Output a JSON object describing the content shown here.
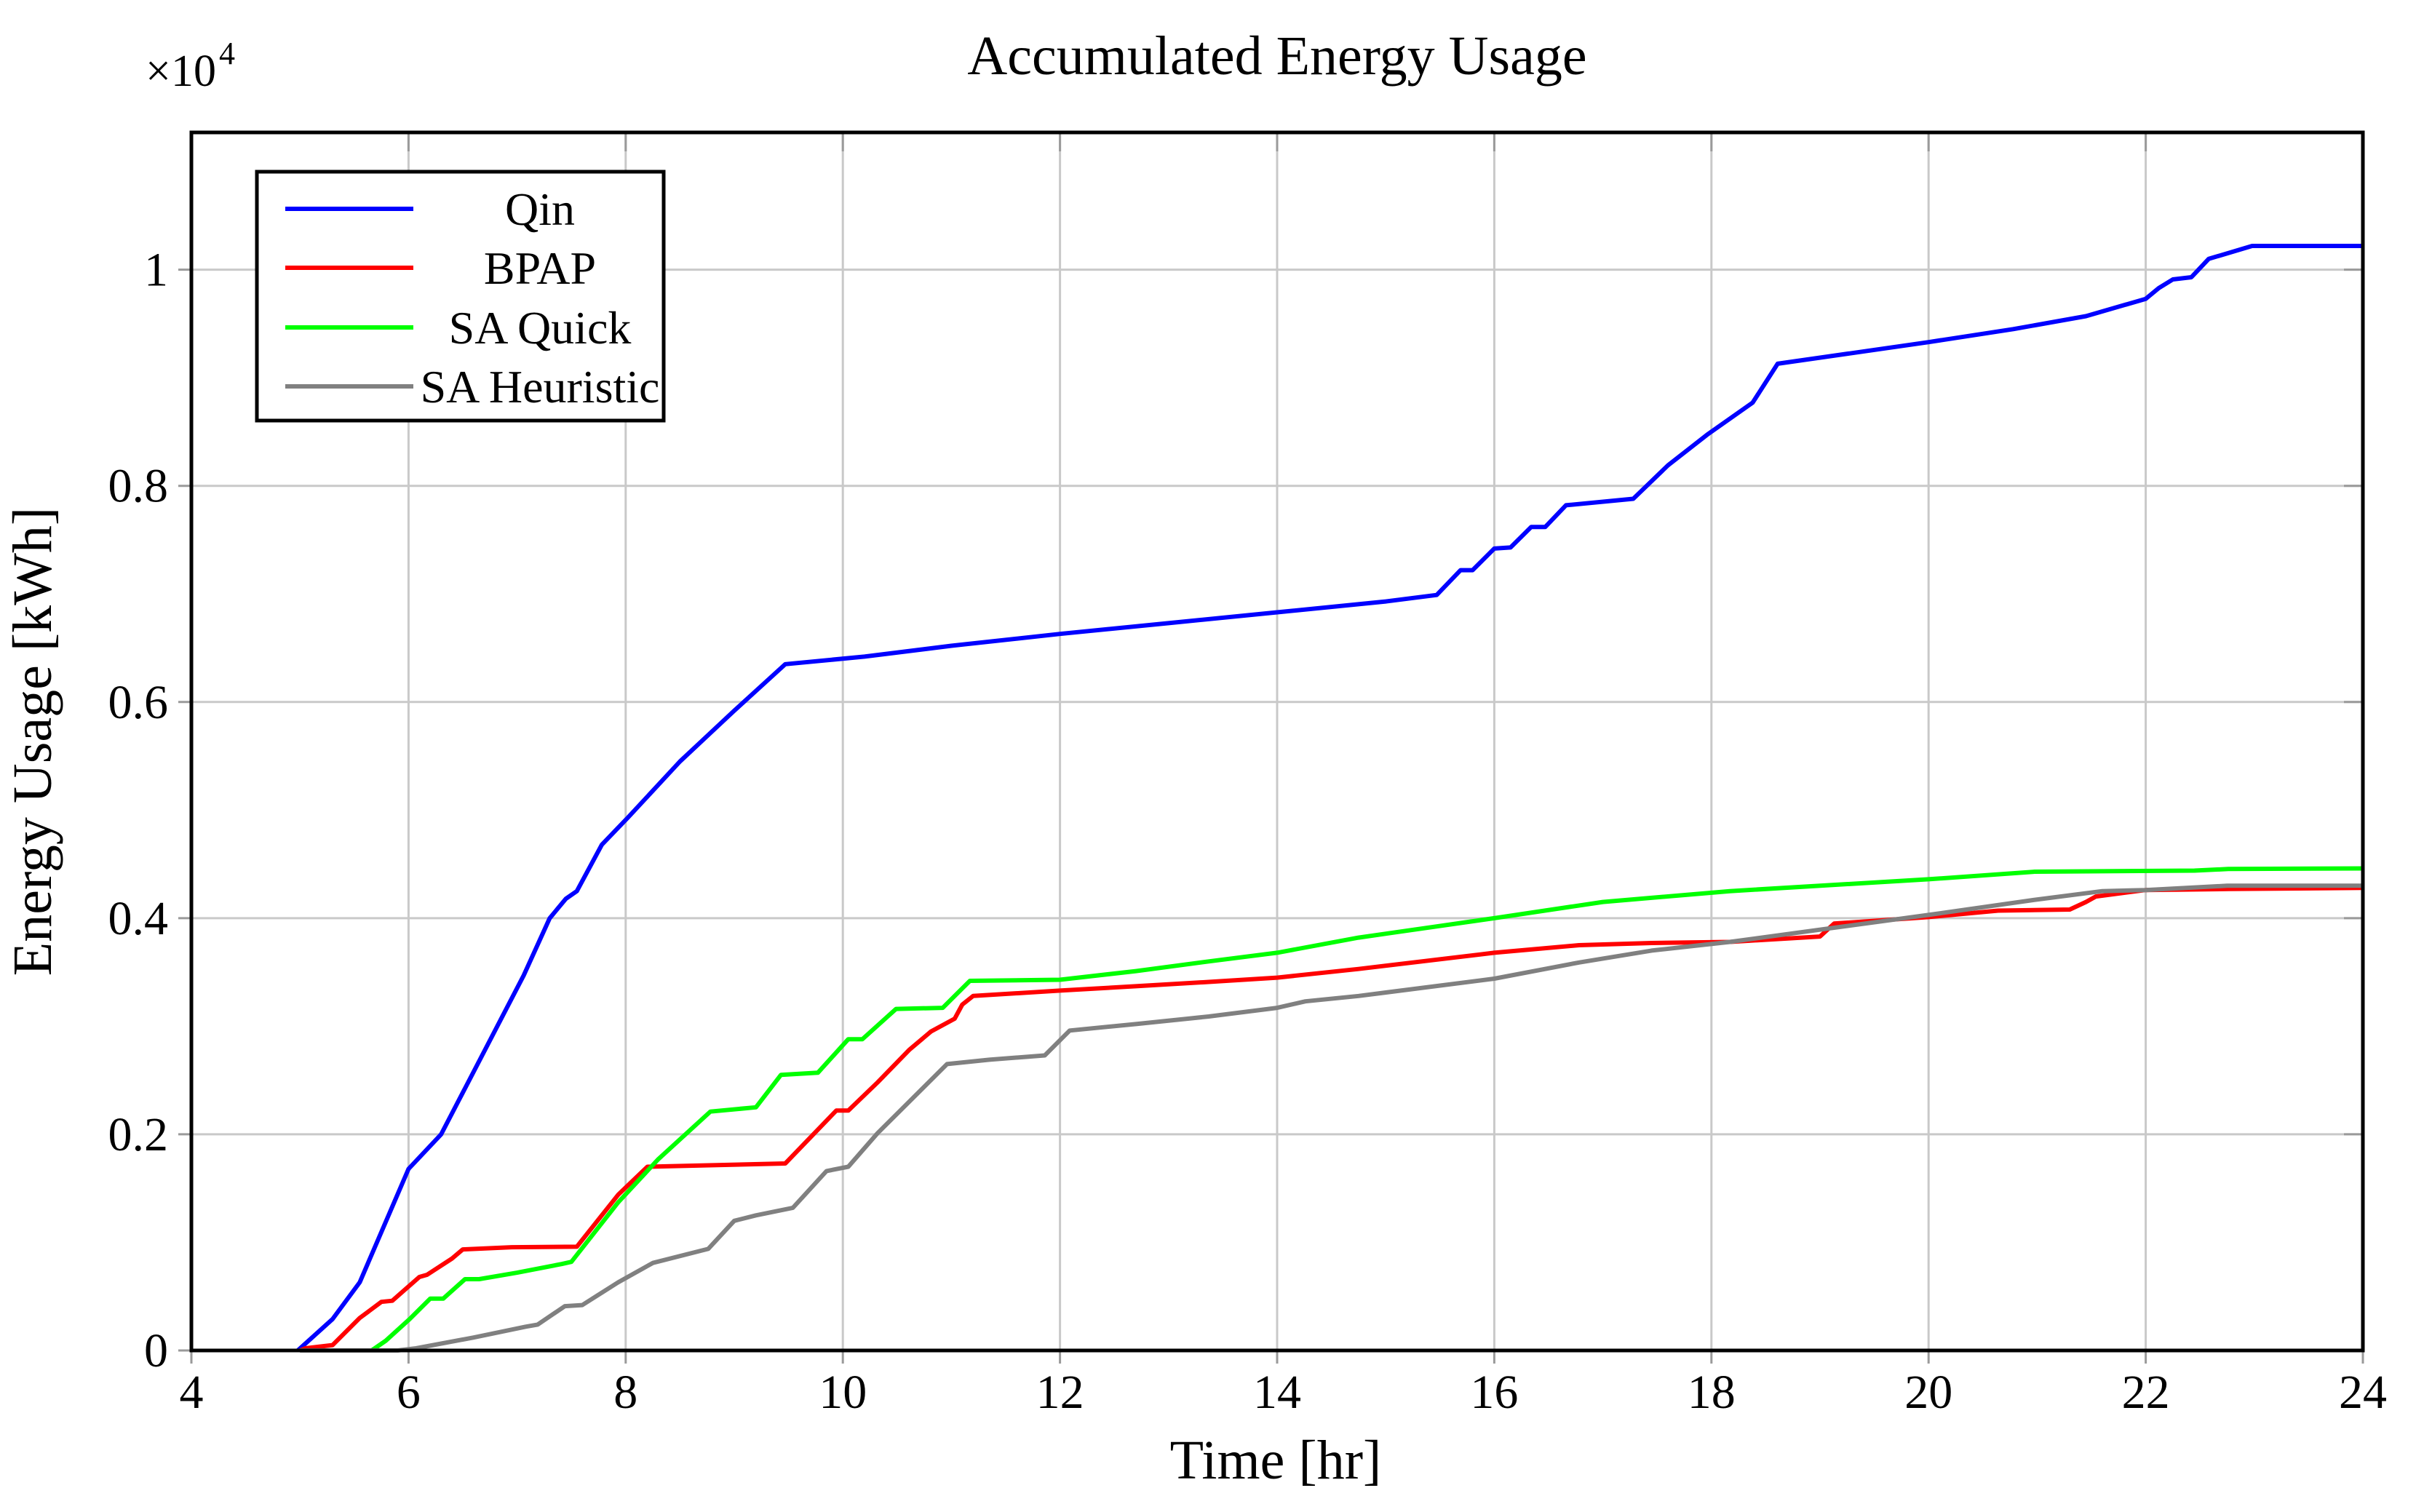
{
  "chart_data": {
    "type": "line",
    "title": "Accumulated Energy Usage",
    "xlabel": "Time [hr]",
    "ylabel": "Energy Usage [kWh]",
    "y_multiplier_base": "×10",
    "y_multiplier_exp": "4",
    "xlim": [
      4,
      24
    ],
    "ylim": [
      0,
      11270
    ],
    "x_ticks": [
      4,
      6,
      8,
      10,
      12,
      14,
      16,
      18,
      20,
      22,
      24
    ],
    "y_ticks": [
      {
        "value": 0,
        "label": "0"
      },
      {
        "value": 2000,
        "label": "0.2"
      },
      {
        "value": 4000,
        "label": "0.4"
      },
      {
        "value": 6000,
        "label": "0.6"
      },
      {
        "value": 8000,
        "label": "0.8"
      },
      {
        "value": 10000,
        "label": "1"
      }
    ],
    "grid": true,
    "legend_position": "top-left",
    "colors": {
      "grid": "#c9c9c9",
      "axis": "#000000",
      "tick": "#9a9a9a",
      "background": "#ffffff"
    },
    "series": [
      {
        "name": "Qin",
        "color": "#0000ff",
        "points": [
          [
            4.98,
            0
          ],
          [
            5.3,
            290
          ],
          [
            5.55,
            630
          ],
          [
            6.0,
            1680
          ],
          [
            6.3,
            2000
          ],
          [
            7.06,
            3470
          ],
          [
            7.3,
            4000
          ],
          [
            7.45,
            4180
          ],
          [
            7.55,
            4250
          ],
          [
            7.78,
            4680
          ],
          [
            8.02,
            4930
          ],
          [
            8.5,
            5450
          ],
          [
            9.0,
            5920
          ],
          [
            9.47,
            6350
          ],
          [
            10.2,
            6420
          ],
          [
            11.0,
            6520
          ],
          [
            12.0,
            6630
          ],
          [
            13.0,
            6730
          ],
          [
            14.0,
            6830
          ],
          [
            15.0,
            6930
          ],
          [
            15.47,
            6990
          ],
          [
            15.69,
            7220
          ],
          [
            15.8,
            7220
          ],
          [
            16.0,
            7420
          ],
          [
            16.15,
            7430
          ],
          [
            16.34,
            7620
          ],
          [
            16.47,
            7620
          ],
          [
            16.66,
            7820
          ],
          [
            17.28,
            7880
          ],
          [
            17.6,
            8190
          ],
          [
            17.97,
            8480
          ],
          [
            18.38,
            8770
          ],
          [
            18.61,
            9130
          ],
          [
            20.0,
            9330
          ],
          [
            20.78,
            9450
          ],
          [
            21.45,
            9570
          ],
          [
            22.0,
            9730
          ],
          [
            22.12,
            9830
          ],
          [
            22.25,
            9910
          ],
          [
            22.42,
            9930
          ],
          [
            22.58,
            10100
          ],
          [
            22.98,
            10220
          ],
          [
            24.0,
            10220
          ]
        ]
      },
      {
        "name": "BPAP",
        "color": "#ff0000",
        "points": [
          [
            5.0,
            0
          ],
          [
            5.05,
            20
          ],
          [
            5.3,
            50
          ],
          [
            5.55,
            300
          ],
          [
            5.75,
            450
          ],
          [
            5.85,
            460
          ],
          [
            6.1,
            680
          ],
          [
            6.17,
            700
          ],
          [
            6.4,
            850
          ],
          [
            6.5,
            935
          ],
          [
            6.95,
            955
          ],
          [
            7.55,
            960
          ],
          [
            7.93,
            1440
          ],
          [
            8.2,
            1700
          ],
          [
            9.47,
            1730
          ],
          [
            9.94,
            2220
          ],
          [
            10.05,
            2220
          ],
          [
            10.32,
            2480
          ],
          [
            10.61,
            2780
          ],
          [
            10.81,
            2950
          ],
          [
            11.03,
            3070
          ],
          [
            11.1,
            3200
          ],
          [
            11.2,
            3280
          ],
          [
            12.0,
            3330
          ],
          [
            12.7,
            3370
          ],
          [
            13.37,
            3410
          ],
          [
            14.0,
            3450
          ],
          [
            14.75,
            3530
          ],
          [
            16.0,
            3680
          ],
          [
            16.78,
            3750
          ],
          [
            17.45,
            3770
          ],
          [
            18.17,
            3780
          ],
          [
            19.0,
            3830
          ],
          [
            19.13,
            3950
          ],
          [
            20.0,
            4010
          ],
          [
            20.64,
            4070
          ],
          [
            21.3,
            4080
          ],
          [
            21.45,
            4150
          ],
          [
            21.54,
            4200
          ],
          [
            22.0,
            4260
          ],
          [
            22.77,
            4270
          ],
          [
            24.0,
            4280
          ]
        ]
      },
      {
        "name": "SA Quick",
        "color": "#00ff00",
        "points": [
          [
            5.66,
            0
          ],
          [
            5.79,
            90
          ],
          [
            6.01,
            290
          ],
          [
            6.2,
            480
          ],
          [
            6.32,
            480
          ],
          [
            6.52,
            660
          ],
          [
            6.65,
            660
          ],
          [
            7.0,
            720
          ],
          [
            7.41,
            800
          ],
          [
            7.5,
            820
          ],
          [
            7.93,
            1370
          ],
          [
            8.3,
            1770
          ],
          [
            8.78,
            2210
          ],
          [
            9.2,
            2250
          ],
          [
            9.43,
            2550
          ],
          [
            9.77,
            2570
          ],
          [
            10.05,
            2880
          ],
          [
            10.18,
            2880
          ],
          [
            10.49,
            3160
          ],
          [
            10.92,
            3170
          ],
          [
            11.17,
            3420
          ],
          [
            12.0,
            3430
          ],
          [
            12.7,
            3510
          ],
          [
            13.37,
            3600
          ],
          [
            14.0,
            3680
          ],
          [
            14.75,
            3820
          ],
          [
            16.0,
            4000
          ],
          [
            17.0,
            4150
          ],
          [
            18.17,
            4250
          ],
          [
            20.0,
            4360
          ],
          [
            20.98,
            4430
          ],
          [
            22.45,
            4440
          ],
          [
            22.76,
            4455
          ],
          [
            24.0,
            4460
          ]
        ]
      },
      {
        "name": "SA Heuristic",
        "color": "#808080",
        "points": [
          [
            5.0,
            0
          ],
          [
            5.9,
            0
          ],
          [
            6.07,
            20
          ],
          [
            6.6,
            120
          ],
          [
            7.08,
            220
          ],
          [
            7.19,
            240
          ],
          [
            7.44,
            410
          ],
          [
            7.6,
            420
          ],
          [
            7.93,
            630
          ],
          [
            8.25,
            810
          ],
          [
            8.76,
            940
          ],
          [
            9.0,
            1200
          ],
          [
            9.2,
            1250
          ],
          [
            9.54,
            1320
          ],
          [
            9.85,
            1660
          ],
          [
            10.05,
            1700
          ],
          [
            10.32,
            2010
          ],
          [
            10.96,
            2650
          ],
          [
            11.35,
            2690
          ],
          [
            11.86,
            2730
          ],
          [
            12.09,
            2960
          ],
          [
            12.7,
            3020
          ],
          [
            13.37,
            3090
          ],
          [
            14.0,
            3170
          ],
          [
            14.26,
            3230
          ],
          [
            14.75,
            3280
          ],
          [
            16.0,
            3440
          ],
          [
            16.78,
            3590
          ],
          [
            17.45,
            3700
          ],
          [
            18.17,
            3780
          ],
          [
            20.0,
            4030
          ],
          [
            20.98,
            4170
          ],
          [
            21.6,
            4250
          ],
          [
            22.0,
            4260
          ],
          [
            22.75,
            4300
          ],
          [
            24.0,
            4300
          ]
        ]
      }
    ]
  }
}
